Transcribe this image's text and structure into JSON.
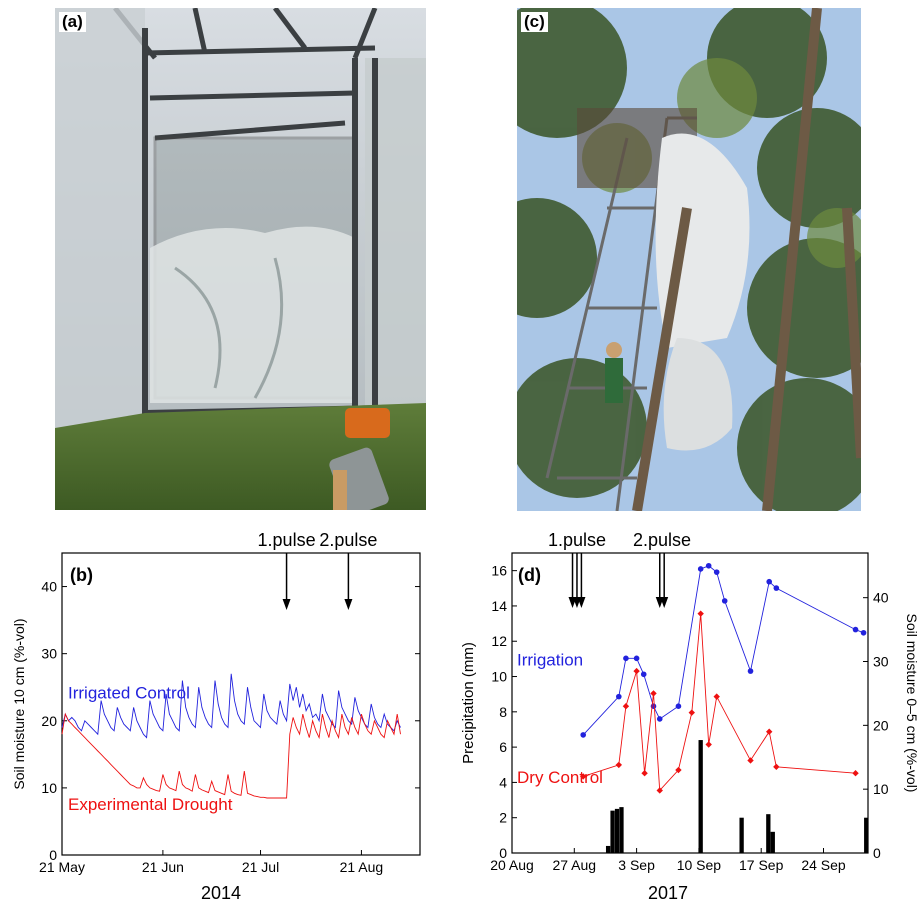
{
  "panel_a": {
    "label": "(a)"
  },
  "panel_c": {
    "label": "(c)"
  },
  "chart_data": [
    {
      "panel": "(b)",
      "type": "line",
      "xlabel": "2014",
      "ylabel": "Soil moisture 10 cm  (%-vol)",
      "x_ticks": [
        "21 May",
        "21 Jun",
        "21 Jul",
        "21 Aug"
      ],
      "x_tick_days": [
        0,
        31,
        61,
        92
      ],
      "xlim_days": [
        0,
        110
      ],
      "ylim": [
        0,
        45
      ],
      "y_ticks": [
        0,
        10,
        20,
        30,
        40
      ],
      "series_labels": [
        {
          "text": "Irrigated Control",
          "color": "#2222dd"
        },
        {
          "text": "Experimental Drought",
          "color": "#ee1111"
        }
      ],
      "arrows": [
        {
          "label": "1.pulse",
          "day": 69
        },
        {
          "label": "2.pulse",
          "day": 88
        }
      ],
      "series": [
        {
          "name": "Irrigated Control",
          "color": "#2222dd",
          "points": [
            [
              0,
              19
            ],
            [
              1,
              21
            ],
            [
              2,
              20
            ],
            [
              3,
              20.5
            ],
            [
              4,
              20
            ],
            [
              5,
              19
            ],
            [
              6,
              18.5
            ],
            [
              7,
              20
            ],
            [
              8,
              19.5
            ],
            [
              9,
              19
            ],
            [
              10,
              18.5
            ],
            [
              11,
              18
            ],
            [
              12,
              23
            ],
            [
              13,
              21
            ],
            [
              14,
              20
            ],
            [
              15,
              19
            ],
            [
              16,
              18.5
            ],
            [
              17,
              22
            ],
            [
              18,
              20.5
            ],
            [
              19,
              19.5
            ],
            [
              20,
              19
            ],
            [
              21,
              18.5
            ],
            [
              22,
              22
            ],
            [
              23,
              20
            ],
            [
              24,
              19
            ],
            [
              25,
              18
            ],
            [
              26,
              17.5
            ],
            [
              27,
              23
            ],
            [
              28,
              21
            ],
            [
              29,
              20
            ],
            [
              30,
              19
            ],
            [
              31,
              18.5
            ],
            [
              32,
              24
            ],
            [
              33,
              21
            ],
            [
              34,
              20
            ],
            [
              35,
              19
            ],
            [
              36,
              18.5
            ],
            [
              37,
              26
            ],
            [
              38,
              22
            ],
            [
              39,
              20.5
            ],
            [
              40,
              19.5
            ],
            [
              41,
              19
            ],
            [
              42,
              25
            ],
            [
              43,
              22
            ],
            [
              44,
              20.5
            ],
            [
              45,
              19.5
            ],
            [
              46,
              19
            ],
            [
              47,
              26
            ],
            [
              48,
              22.5
            ],
            [
              49,
              20.5
            ],
            [
              50,
              19.5
            ],
            [
              51,
              19
            ],
            [
              52,
              27
            ],
            [
              53,
              23
            ],
            [
              54,
              21
            ],
            [
              55,
              20
            ],
            [
              56,
              19.5
            ],
            [
              57,
              25
            ],
            [
              58,
              22
            ],
            [
              59,
              20
            ],
            [
              60,
              19.5
            ],
            [
              61,
              19
            ],
            [
              62,
              24
            ],
            [
              63,
              21.5
            ],
            [
              64,
              20.5
            ],
            [
              65,
              20
            ],
            [
              66,
              19.5
            ],
            [
              67,
              23
            ],
            [
              68,
              21
            ],
            [
              69,
              20
            ],
            [
              70,
              25.5
            ],
            [
              71,
              23
            ],
            [
              72,
              25
            ],
            [
              73,
              22
            ],
            [
              74,
              24
            ],
            [
              75,
              21.5
            ],
            [
              76,
              22.5
            ],
            [
              77,
              20.5
            ],
            [
              78,
              21
            ],
            [
              79,
              20
            ],
            [
              80,
              24
            ],
            [
              81,
              21.5
            ],
            [
              82,
              20.5
            ],
            [
              83,
              19.5
            ],
            [
              84,
              19
            ],
            [
              85,
              24.5
            ],
            [
              86,
              22
            ],
            [
              87,
              21
            ],
            [
              88,
              20
            ],
            [
              89,
              19.5
            ],
            [
              90,
              23.5
            ],
            [
              91,
              21.5
            ],
            [
              92,
              20.5
            ],
            [
              93,
              19.5
            ],
            [
              94,
              19
            ],
            [
              95,
              22.5
            ],
            [
              96,
              20.5
            ],
            [
              97,
              19.5
            ],
            [
              98,
              19
            ],
            [
              99,
              21
            ],
            [
              100,
              19.5
            ],
            [
              101,
              19
            ],
            [
              102,
              18.5
            ],
            [
              103,
              20
            ],
            [
              104,
              19
            ]
          ]
        },
        {
          "name": "Experimental Drought",
          "color": "#ee1111",
          "points": [
            [
              0,
              18
            ],
            [
              1,
              21
            ],
            [
              2,
              20
            ],
            [
              3,
              19.5
            ],
            [
              4,
              19
            ],
            [
              5,
              18.5
            ],
            [
              6,
              18
            ],
            [
              7,
              17.5
            ],
            [
              8,
              17
            ],
            [
              9,
              16.5
            ],
            [
              10,
              16
            ],
            [
              11,
              15.5
            ],
            [
              12,
              15
            ],
            [
              13,
              14.5
            ],
            [
              14,
              14
            ],
            [
              15,
              13.5
            ],
            [
              16,
              13
            ],
            [
              17,
              12.5
            ],
            [
              18,
              12
            ],
            [
              19,
              11.5
            ],
            [
              20,
              11
            ],
            [
              21,
              10.5
            ],
            [
              22,
              10.3
            ],
            [
              23,
              10
            ],
            [
              24,
              10
            ],
            [
              25,
              11.5
            ],
            [
              26,
              10.5
            ],
            [
              27,
              10
            ],
            [
              28,
              9.8
            ],
            [
              29,
              9.6
            ],
            [
              30,
              9.5
            ],
            [
              31,
              12
            ],
            [
              32,
              10.5
            ],
            [
              33,
              10
            ],
            [
              34,
              9.8
            ],
            [
              35,
              9.6
            ],
            [
              36,
              12.5
            ],
            [
              37,
              10.5
            ],
            [
              38,
              10
            ],
            [
              39,
              9.8
            ],
            [
              40,
              9.5
            ],
            [
              41,
              12
            ],
            [
              42,
              10
            ],
            [
              43,
              9.7
            ],
            [
              44,
              9.5
            ],
            [
              45,
              9.3
            ],
            [
              46,
              11
            ],
            [
              47,
              9.6
            ],
            [
              48,
              9.4
            ],
            [
              49,
              9.2
            ],
            [
              50,
              9
            ],
            [
              51,
              12
            ],
            [
              52,
              9.5
            ],
            [
              53,
              9.2
            ],
            [
              54,
              9
            ],
            [
              55,
              8.9
            ],
            [
              56,
              12.5
            ],
            [
              57,
              9.2
            ],
            [
              58,
              9
            ],
            [
              59,
              8.8
            ],
            [
              60,
              8.7
            ],
            [
              61,
              8.6
            ],
            [
              62,
              8.6
            ],
            [
              63,
              8.5
            ],
            [
              64,
              8.5
            ],
            [
              65,
              8.5
            ],
            [
              66,
              8.5
            ],
            [
              67,
              8.5
            ],
            [
              68,
              8.5
            ],
            [
              69,
              8.5
            ],
            [
              70,
              18
            ],
            [
              71,
              20.5
            ],
            [
              72,
              19
            ],
            [
              73,
              18
            ],
            [
              74,
              21
            ],
            [
              75,
              19
            ],
            [
              76,
              17.5
            ],
            [
              77,
              20
            ],
            [
              78,
              18.5
            ],
            [
              79,
              17.5
            ],
            [
              80,
              21
            ],
            [
              81,
              19
            ],
            [
              82,
              17.5
            ],
            [
              83,
              20
            ],
            [
              84,
              18.5
            ],
            [
              85,
              17.5
            ],
            [
              86,
              21
            ],
            [
              87,
              19
            ],
            [
              88,
              18
            ],
            [
              89,
              20.5
            ],
            [
              90,
              19
            ],
            [
              91,
              18
            ],
            [
              92,
              21
            ],
            [
              93,
              19.5
            ],
            [
              94,
              18.5
            ],
            [
              95,
              18
            ],
            [
              96,
              20
            ],
            [
              97,
              19
            ],
            [
              98,
              18
            ],
            [
              99,
              17.5
            ],
            [
              100,
              20
            ],
            [
              101,
              19
            ],
            [
              102,
              18
            ],
            [
              103,
              21
            ],
            [
              104,
              18
            ]
          ]
        }
      ]
    },
    {
      "panel": "(d)",
      "type": "bar",
      "xlabel": "2017",
      "ylabel": "Precipitation (mm)",
      "y2label": "Soil moisture 0–5 cm  (%-vol)",
      "x_ticks": [
        "20 Aug",
        "27 Aug",
        "3 Sep",
        "10 Sep",
        "17 Sep",
        "24 Sep"
      ],
      "x_tick_days": [
        0,
        7,
        14,
        21,
        28,
        35
      ],
      "xlim_days": [
        0,
        40
      ],
      "ylim": [
        0,
        17
      ],
      "y_ticks": [
        0,
        2,
        4,
        6,
        8,
        10,
        12,
        14,
        16
      ],
      "y2lim": [
        0,
        47
      ],
      "y2_ticks": [
        0,
        10,
        20,
        30,
        40
      ],
      "series_labels": [
        {
          "text": "Irrigation",
          "color": "#2222dd"
        },
        {
          "text": "Dry Control",
          "color": "#ee1111"
        }
      ],
      "arrows": [
        {
          "label": "1.pulse",
          "days": [
            6.8,
            7.3,
            7.8
          ]
        },
        {
          "label": "2.pulse",
          "days": [
            16.6,
            17.1
          ]
        }
      ],
      "bars": [
        {
          "day": 10.8,
          "value": 0.4
        },
        {
          "day": 11.3,
          "value": 2.4
        },
        {
          "day": 11.8,
          "value": 2.5
        },
        {
          "day": 12.3,
          "value": 2.6
        },
        {
          "day": 21.2,
          "value": 6.4
        },
        {
          "day": 25.8,
          "value": 2.0
        },
        {
          "day": 28.8,
          "value": 2.2
        },
        {
          "day": 29.3,
          "value": 1.2
        },
        {
          "day": 39.8,
          "value": 2.0
        }
      ],
      "series": [
        {
          "name": "Irrigation",
          "color": "#2222dd",
          "points": [
            [
              8,
              18.5
            ],
            [
              12,
              24.5
            ],
            [
              12.8,
              30.5
            ],
            [
              14,
              30.5
            ],
            [
              14.8,
              28
            ],
            [
              15.9,
              23
            ],
            [
              16.6,
              21
            ],
            [
              18.7,
              23
            ],
            [
              21.2,
              44.5
            ],
            [
              22.1,
              45
            ],
            [
              23,
              44
            ],
            [
              23.9,
              39.5
            ],
            [
              26.8,
              28.5
            ],
            [
              28.9,
              42.5
            ],
            [
              29.7,
              41.5
            ],
            [
              38.6,
              35
            ],
            [
              39.5,
              34.5
            ]
          ]
        },
        {
          "name": "Dry Control",
          "color": "#ee1111",
          "points": [
            [
              8,
              12
            ],
            [
              12,
              13.8
            ],
            [
              12.8,
              23
            ],
            [
              14,
              28.5
            ],
            [
              14.9,
              12.5
            ],
            [
              15.9,
              25
            ],
            [
              16.6,
              9.8
            ],
            [
              18.7,
              13
            ],
            [
              20.2,
              22
            ],
            [
              21.2,
              37.5
            ],
            [
              22.1,
              17
            ],
            [
              23,
              24.5
            ],
            [
              26.8,
              14.5
            ],
            [
              28.9,
              19
            ],
            [
              29.7,
              13.5
            ],
            [
              38.6,
              12.5
            ]
          ]
        }
      ]
    }
  ]
}
